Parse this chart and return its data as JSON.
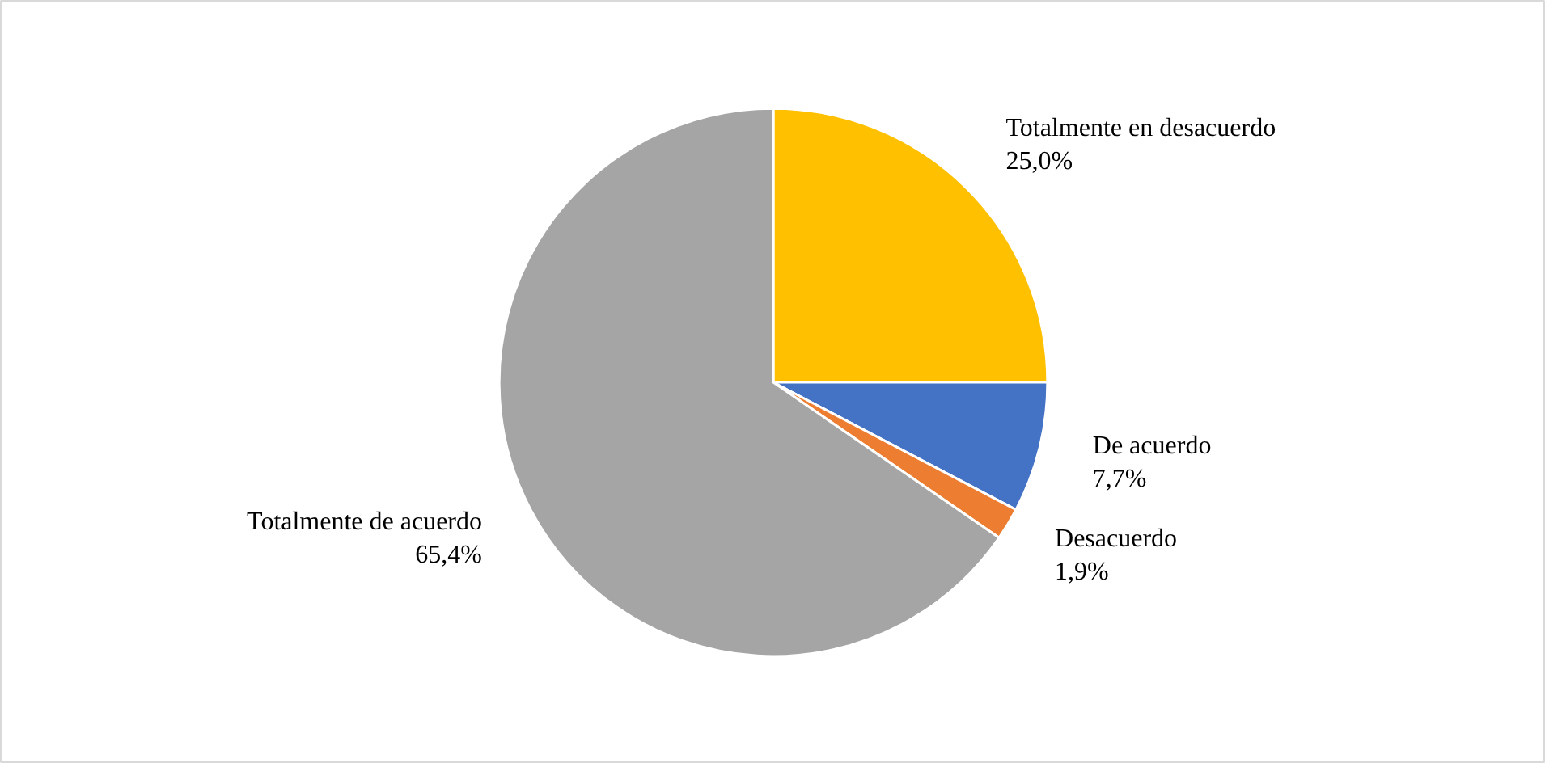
{
  "chart_data": {
    "type": "pie",
    "categories": [
      "Totalmente en desacuerdo",
      "De acuerdo",
      "Desacuerdo",
      "Totalmente de acuerdo"
    ],
    "values": [
      25.0,
      7.7,
      1.9,
      65.4
    ],
    "colors": [
      "#ffc000",
      "#4472c4",
      "#ed7d31",
      "#a5a5a5"
    ],
    "value_labels": [
      "25,0%",
      "7,7%",
      "1,9%",
      "65,4%"
    ]
  }
}
